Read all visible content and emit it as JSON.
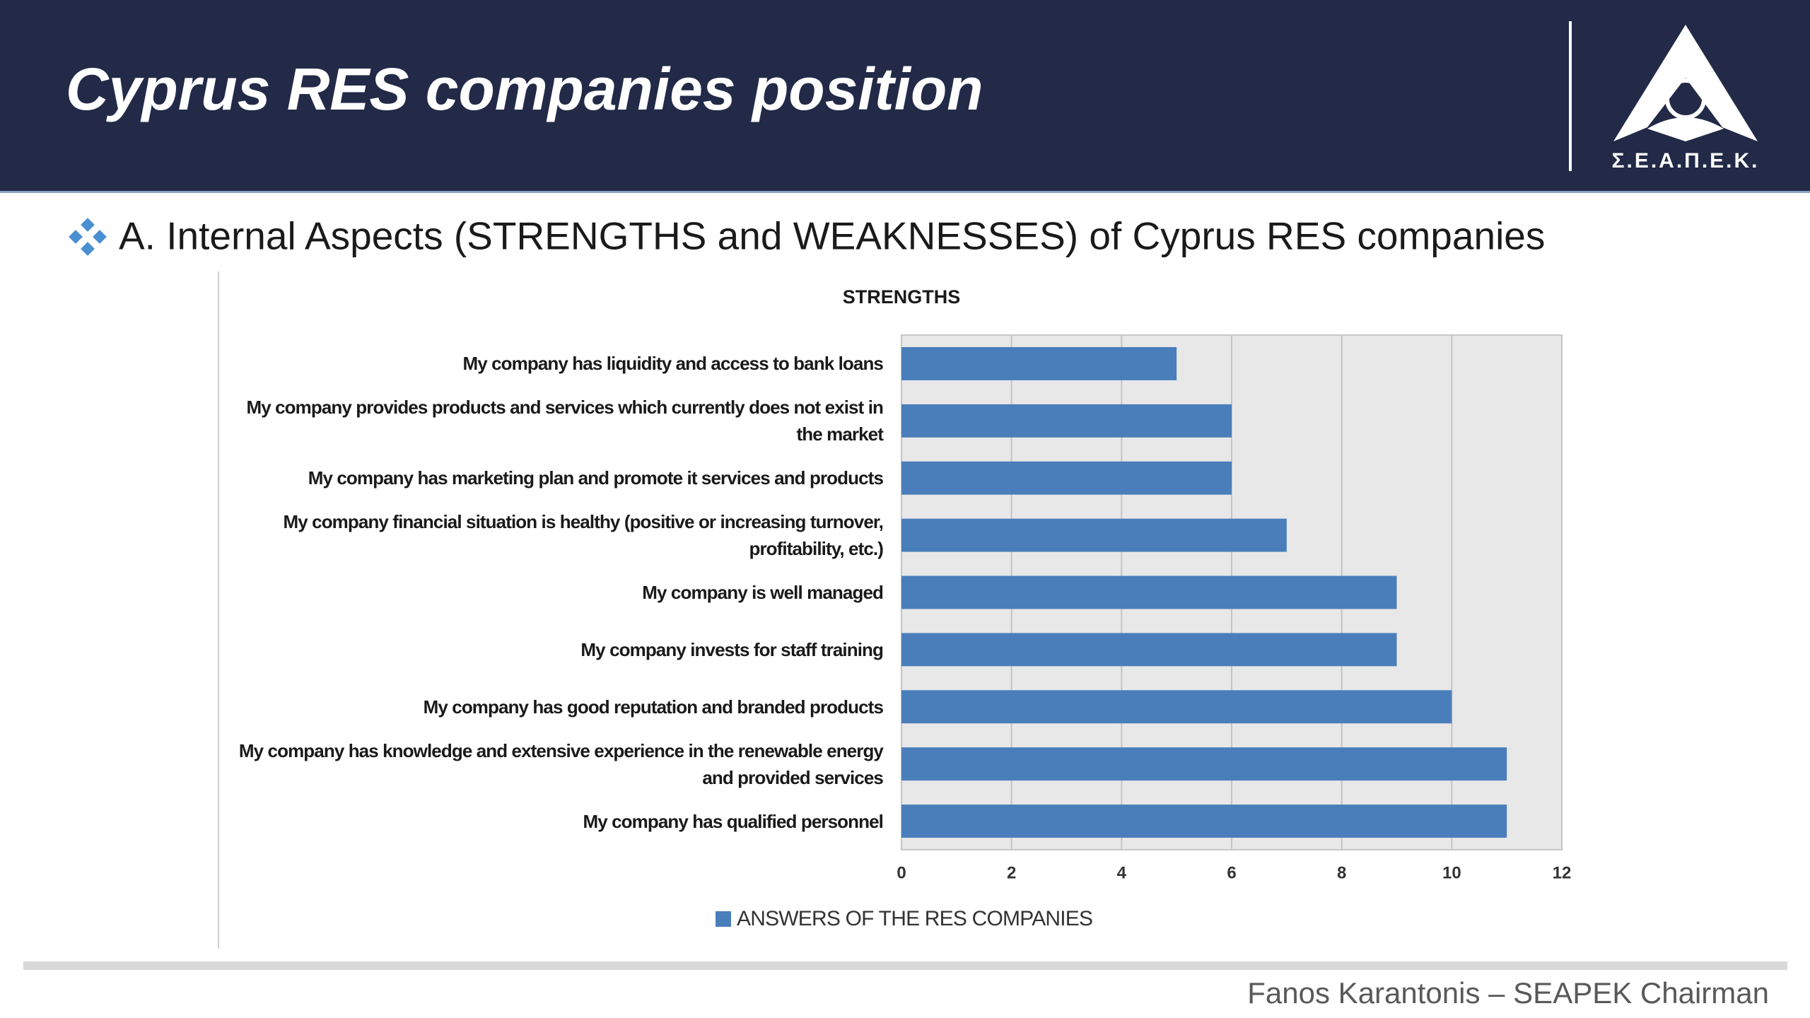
{
  "header": {
    "title": "Cyprus RES companies position",
    "logo_text": "Σ.Ε.Α.Π.Ε.Κ."
  },
  "bullet": "A. Internal Aspects (STRENGTHS and WEAKNESSES) of Cyprus RES companies",
  "footer": "Fanos Karantonis – SEAPEK Chairman",
  "chart_data": {
    "type": "barh",
    "title": "STRENGTHS",
    "categories": [
      "My company has liquidity and access to bank loans",
      "My company provides products and services which currently does not exist in the market",
      "My company has marketing plan and promote it services and products",
      "My company financial situation is healthy (positive or increasing turnover, profitability, etc.)",
      "My company is well managed",
      "My company invests for staff training",
      "My company has good reputation and branded products",
      "My company has knowledge and extensive experience in the renewable energy and provided services",
      "My company has qualified personnel"
    ],
    "series": [
      {
        "name": "ANSWERS OF THE RES COMPANIES",
        "color": "#4a7ebb",
        "values": [
          5,
          6,
          6,
          7,
          9,
          9,
          10,
          11,
          11
        ]
      }
    ],
    "xlim": [
      0,
      12
    ],
    "xticks": [
      0,
      2,
      4,
      6,
      8,
      10,
      12
    ],
    "grid": true
  }
}
